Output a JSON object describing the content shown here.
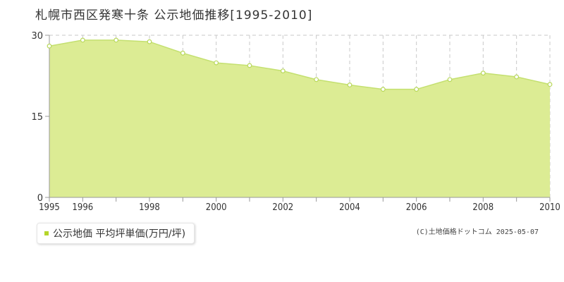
{
  "chart_data": {
    "type": "area",
    "title": "札幌市西区発寒十条 公示地価推移[1995-2010]",
    "x": [
      1995,
      1996,
      1997,
      1998,
      1999,
      2000,
      2001,
      2002,
      2003,
      2004,
      2005,
      2006,
      2007,
      2008,
      2009,
      2010
    ],
    "series": [
      {
        "name": "公示地価 平均坪単価(万円/坪)",
        "values": [
          28.0,
          29.1,
          29.1,
          28.8,
          26.7,
          24.9,
          24.4,
          23.4,
          21.8,
          20.8,
          20.0,
          20.0,
          21.8,
          23.0,
          22.3,
          20.9
        ]
      }
    ],
    "x_tick_labels": [
      "1995",
      "1996",
      "1998",
      "2000",
      "2002",
      "2004",
      "2006",
      "2008",
      "2010"
    ],
    "y_tick_labels": [
      "0",
      "15",
      "30"
    ],
    "ylim": [
      0,
      30
    ],
    "xlim": [
      1995,
      2010
    ],
    "grid": true,
    "legend_position": "bottom-left",
    "colors": {
      "fill": "#dcec94",
      "line": "#c4e070",
      "marker_fill": "#ffffff",
      "marker_stroke": "#b8d85a",
      "grid": "#c8c8c8",
      "axis": "#999999",
      "legend_swatch": "#b5d52a"
    }
  },
  "copyright": "(C)土地価格ドットコム 2025-05-07"
}
